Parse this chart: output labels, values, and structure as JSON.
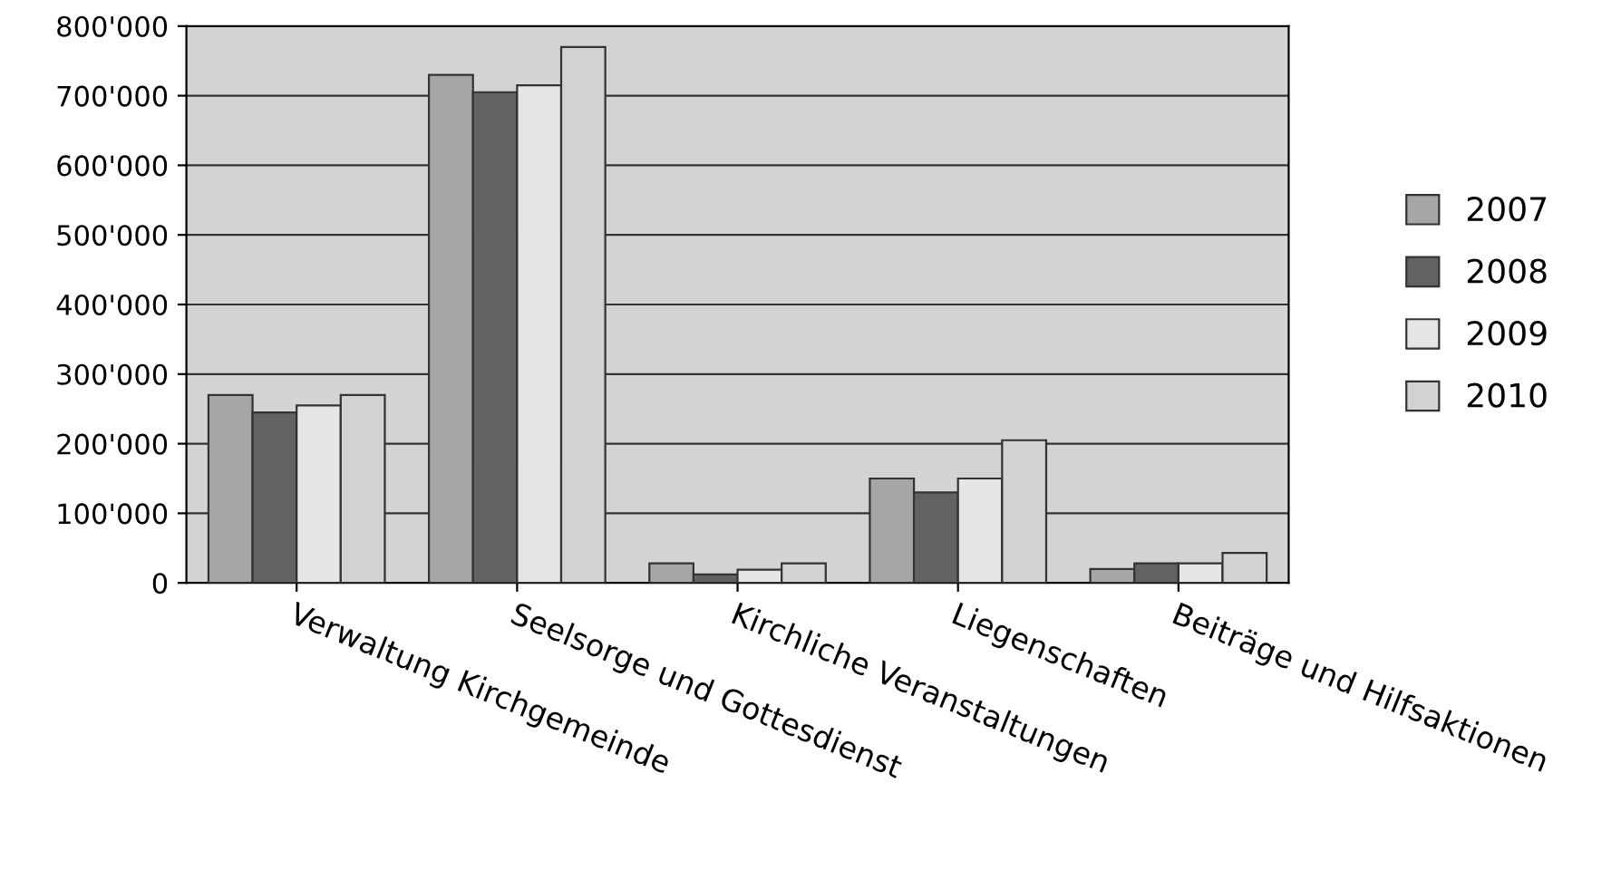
{
  "chart_data": {
    "type": "bar",
    "categories": [
      "Verwaltung Kirchgemeinde",
      "Seelsorge und Gottesdienst",
      "Kirchliche Veranstaltungen",
      "Liegenschaften",
      "Beiträge und Hilfsaktionen"
    ],
    "series": [
      {
        "name": "2007",
        "color": "#a6a6a8",
        "values": [
          270000,
          730000,
          28000,
          150000,
          20000
        ]
      },
      {
        "name": "2008",
        "color": "#626262",
        "values": [
          245000,
          705000,
          12000,
          130000,
          28000
        ]
      },
      {
        "name": "2009",
        "color": "#e6e6e8",
        "values": [
          255000,
          715000,
          19000,
          150000,
          28000
        ]
      },
      {
        "name": "2010",
        "color": "#d2d2d4",
        "values": [
          270000,
          770000,
          28000,
          205000,
          43000
        ]
      }
    ],
    "ylim": [
      0,
      800000
    ],
    "yticks": [
      {
        "value": 0,
        "label": "0"
      },
      {
        "value": 100000,
        "label": "100'000"
      },
      {
        "value": 200000,
        "label": "200'000"
      },
      {
        "value": 300000,
        "label": "300'000"
      },
      {
        "value": 400000,
        "label": "400'000"
      },
      {
        "value": 500000,
        "label": "500'000"
      },
      {
        "value": 600000,
        "label": "600'000"
      },
      {
        "value": 700000,
        "label": "700'000"
      },
      {
        "value": 800000,
        "label": "800'000"
      }
    ],
    "grid": "y",
    "legend": "right"
  }
}
